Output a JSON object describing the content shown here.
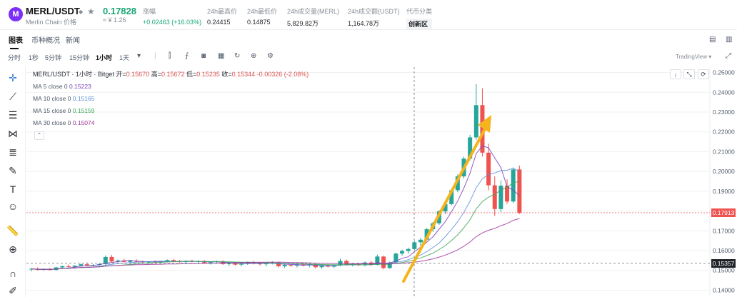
{
  "header": {
    "logo_letter": "M",
    "pair": "MERL/USDT",
    "pair_sub": "Merlin Chain 价格",
    "price": "0.17828",
    "price_fiat": "≈ ¥ 1.26",
    "change_label": "涨幅",
    "change_value": "+0.02463 (+16.03%)",
    "high_label": "24h最高价",
    "high_value": "0.24415",
    "low_label": "24h最低价",
    "low_value": "0.14875",
    "vol_merl_label": "24h成交量(MERL)",
    "vol_merl_value": "5,829.82万",
    "vol_usdt_label": "24h成交额(USDT)",
    "vol_usdt_value": "1,164.78万",
    "category_label": "代币分类",
    "category_value": "创新区"
  },
  "tabs": [
    "图表",
    "币种概况",
    "新闻"
  ],
  "toolbar": {
    "intervals": [
      "分时",
      "1秒",
      "5分钟",
      "15分钟",
      "1小时",
      "1天"
    ],
    "active_interval": "1小时",
    "tradingview": "TradingView ▾"
  },
  "legend": {
    "title": "MERL/USDT · 1小时 · Bitget",
    "open_label": "开=",
    "open": "0.15670",
    "high_label": "高=",
    "high": "0.15672",
    "low_label": "低=",
    "low": "0.15235",
    "close_label": "收=",
    "close": "0.15344",
    "change": "-0.00326 (-2.08%)"
  },
  "ma": [
    {
      "label": "MA 5 close 0",
      "value": "0.15223",
      "color": "#7b3fb8"
    },
    {
      "label": "MA 10 close 0",
      "value": "0.15165",
      "color": "#5e8fd6"
    },
    {
      "label": "MA 15 close 0",
      "value": "0.15159",
      "color": "#3aa655"
    },
    {
      "label": "MA 30 close 0",
      "value": "0.15074",
      "color": "#a0339a"
    }
  ],
  "price_tags": {
    "current": "0.17913",
    "crosshair": "0.15357"
  },
  "colors": {
    "up": "#26a69a",
    "down": "#ef5350",
    "arrow": "#f5b31d"
  },
  "chart_data": {
    "type": "candlestick",
    "interval": "1小时",
    "y_ticks": [
      "0.25000",
      "0.24000",
      "0.23000",
      "0.22000",
      "0.21000",
      "0.20000",
      "0.19000",
      "0.18000",
      "0.17000",
      "0.16000",
      "0.15000",
      "0.14000"
    ],
    "ylim": [
      0.138,
      0.252
    ],
    "candles": [
      [
        0.1505,
        0.1512,
        0.1495,
        0.1508
      ],
      [
        0.1508,
        0.1515,
        0.15,
        0.1503
      ],
      [
        0.1503,
        0.151,
        0.1498,
        0.1507
      ],
      [
        0.1507,
        0.1513,
        0.15,
        0.1502
      ],
      [
        0.1502,
        0.1518,
        0.15,
        0.1515
      ],
      [
        0.1515,
        0.1525,
        0.151,
        0.1521
      ],
      [
        0.1521,
        0.153,
        0.1515,
        0.1518
      ],
      [
        0.1518,
        0.1526,
        0.1512,
        0.1524
      ],
      [
        0.1524,
        0.1535,
        0.152,
        0.1531
      ],
      [
        0.1531,
        0.154,
        0.1522,
        0.1526
      ],
      [
        0.1526,
        0.1532,
        0.152,
        0.1528
      ],
      [
        0.1528,
        0.1536,
        0.1522,
        0.1532
      ],
      [
        0.1532,
        0.1575,
        0.1528,
        0.1568
      ],
      [
        0.1568,
        0.1578,
        0.154,
        0.1545
      ],
      [
        0.1545,
        0.1555,
        0.1535,
        0.155
      ],
      [
        0.155,
        0.1558,
        0.154,
        0.1543
      ],
      [
        0.1543,
        0.1553,
        0.1538,
        0.1549
      ],
      [
        0.1549,
        0.1556,
        0.154,
        0.1544
      ],
      [
        0.1544,
        0.155,
        0.1535,
        0.154
      ],
      [
        0.154,
        0.1548,
        0.1533,
        0.1545
      ],
      [
        0.1545,
        0.1552,
        0.1538,
        0.1541
      ],
      [
        0.1541,
        0.1549,
        0.1534,
        0.1546
      ],
      [
        0.1546,
        0.1555,
        0.154,
        0.1552
      ],
      [
        0.1552,
        0.1558,
        0.1542,
        0.1547
      ],
      [
        0.1547,
        0.1553,
        0.1538,
        0.1542
      ],
      [
        0.1542,
        0.155,
        0.1535,
        0.1548
      ],
      [
        0.1548,
        0.1554,
        0.154,
        0.1543
      ],
      [
        0.1543,
        0.1551,
        0.1536,
        0.1547
      ],
      [
        0.1547,
        0.1553,
        0.1534,
        0.1538
      ],
      [
        0.1538,
        0.1546,
        0.153,
        0.1542
      ],
      [
        0.1542,
        0.155,
        0.1535,
        0.1546
      ],
      [
        0.1546,
        0.1552,
        0.1528,
        0.1532
      ],
      [
        0.1532,
        0.154,
        0.1522,
        0.1535
      ],
      [
        0.1535,
        0.1542,
        0.1525,
        0.1529
      ],
      [
        0.1529,
        0.1538,
        0.152,
        0.1534
      ],
      [
        0.1534,
        0.1545,
        0.1528,
        0.1541
      ],
      [
        0.1541,
        0.1548,
        0.153,
        0.1536
      ],
      [
        0.1536,
        0.1544,
        0.1525,
        0.1531
      ],
      [
        0.1531,
        0.154,
        0.152,
        0.1537
      ],
      [
        0.1537,
        0.1546,
        0.153,
        0.154
      ],
      [
        0.154,
        0.1545,
        0.1515,
        0.1521
      ],
      [
        0.1521,
        0.1532,
        0.1512,
        0.1528
      ],
      [
        0.1528,
        0.1535,
        0.1518,
        0.1524
      ],
      [
        0.1524,
        0.1533,
        0.1515,
        0.153
      ],
      [
        0.153,
        0.1538,
        0.152,
        0.1526
      ],
      [
        0.1526,
        0.1534,
        0.1515,
        0.1531
      ],
      [
        0.1531,
        0.1537,
        0.151,
        0.1516
      ],
      [
        0.1516,
        0.1528,
        0.1508,
        0.1523
      ],
      [
        0.1523,
        0.1532,
        0.1515,
        0.1519
      ],
      [
        0.1519,
        0.153,
        0.1512,
        0.1527
      ],
      [
        0.1527,
        0.156,
        0.152,
        0.1548
      ],
      [
        0.1548,
        0.1555,
        0.1525,
        0.153
      ],
      [
        0.153,
        0.1538,
        0.152,
        0.1534
      ],
      [
        0.1534,
        0.154,
        0.1522,
        0.1526
      ],
      [
        0.1526,
        0.1545,
        0.152,
        0.154
      ],
      [
        0.154,
        0.1548,
        0.1522,
        0.1528
      ],
      [
        0.1528,
        0.158,
        0.1525,
        0.157
      ],
      [
        0.157,
        0.1575,
        0.1505,
        0.1512
      ],
      [
        0.1512,
        0.1545,
        0.1508,
        0.154
      ],
      [
        0.154,
        0.159,
        0.1532,
        0.1585
      ],
      [
        0.1585,
        0.1605,
        0.1575,
        0.1598
      ],
      [
        0.1598,
        0.1615,
        0.1585,
        0.1608
      ],
      [
        0.1608,
        0.165,
        0.16,
        0.1642
      ],
      [
        0.1642,
        0.1665,
        0.1625,
        0.1655
      ],
      [
        0.1655,
        0.1715,
        0.1648,
        0.1708
      ],
      [
        0.1708,
        0.1745,
        0.1695,
        0.1738
      ],
      [
        0.1738,
        0.1805,
        0.173,
        0.1798
      ],
      [
        0.1798,
        0.1845,
        0.1785,
        0.1835
      ],
      [
        0.1835,
        0.1915,
        0.1828,
        0.1905
      ],
      [
        0.1905,
        0.1985,
        0.1895,
        0.1975
      ],
      [
        0.1975,
        0.2075,
        0.1965,
        0.2065
      ],
      [
        0.2065,
        0.2185,
        0.2055,
        0.2172
      ],
      [
        0.2172,
        0.2442,
        0.216,
        0.2335
      ],
      [
        0.2335,
        0.242,
        0.2075,
        0.2095
      ],
      [
        0.2095,
        0.214,
        0.1905,
        0.193
      ],
      [
        0.193,
        0.1975,
        0.1775,
        0.181
      ],
      [
        0.181,
        0.1955,
        0.1795,
        0.1928
      ],
      [
        0.1928,
        0.196,
        0.1835,
        0.1848
      ],
      [
        0.1848,
        0.202,
        0.184,
        0.201
      ],
      [
        0.201,
        0.203,
        0.1785,
        0.1791
      ]
    ]
  }
}
